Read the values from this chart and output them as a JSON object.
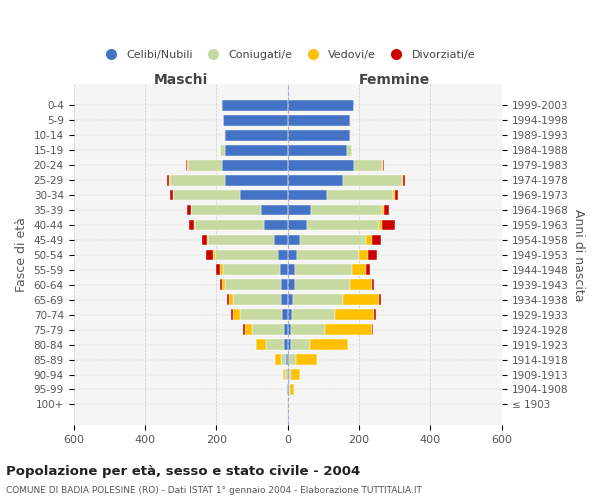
{
  "age_groups": [
    "100+",
    "95-99",
    "90-94",
    "85-89",
    "80-84",
    "75-79",
    "70-74",
    "65-69",
    "60-64",
    "55-59",
    "50-54",
    "45-49",
    "40-44",
    "35-39",
    "30-34",
    "25-29",
    "20-24",
    "15-19",
    "10-14",
    "5-9",
    "0-4"
  ],
  "birth_years": [
    "≤ 1903",
    "1904-1908",
    "1909-1913",
    "1914-1918",
    "1919-1923",
    "1924-1928",
    "1929-1933",
    "1934-1938",
    "1939-1943",
    "1944-1948",
    "1949-1953",
    "1954-1958",
    "1959-1963",
    "1964-1968",
    "1969-1973",
    "1974-1978",
    "1979-1983",
    "1984-1988",
    "1989-1993",
    "1994-1998",
    "1999-2003"
  ],
  "males": {
    "single": [
      2,
      2,
      3,
      5,
      10,
      10,
      15,
      18,
      20,
      22,
      28,
      38,
      65,
      75,
      135,
      175,
      185,
      175,
      175,
      180,
      185
    ],
    "married": [
      0,
      2,
      5,
      15,
      50,
      90,
      120,
      135,
      155,
      160,
      175,
      185,
      195,
      195,
      185,
      155,
      95,
      15,
      3,
      2,
      2
    ],
    "widowed": [
      0,
      2,
      5,
      15,
      30,
      20,
      18,
      12,
      10,
      8,
      5,
      3,
      2,
      2,
      2,
      2,
      2,
      0,
      0,
      0,
      0
    ],
    "divorced": [
      0,
      0,
      0,
      0,
      0,
      5,
      5,
      5,
      5,
      10,
      20,
      15,
      15,
      10,
      8,
      5,
      2,
      0,
      0,
      0,
      0
    ]
  },
  "females": {
    "single": [
      2,
      5,
      5,
      5,
      8,
      10,
      12,
      15,
      20,
      20,
      25,
      35,
      55,
      65,
      110,
      155,
      185,
      165,
      175,
      175,
      185
    ],
    "married": [
      0,
      2,
      5,
      18,
      55,
      95,
      120,
      140,
      155,
      160,
      175,
      185,
      200,
      200,
      185,
      165,
      80,
      15,
      3,
      2,
      2
    ],
    "widowed": [
      2,
      10,
      25,
      60,
      105,
      130,
      110,
      100,
      60,
      40,
      25,
      15,
      10,
      5,
      5,
      3,
      2,
      0,
      0,
      0,
      0
    ],
    "divorced": [
      0,
      0,
      0,
      0,
      2,
      5,
      5,
      5,
      8,
      10,
      25,
      25,
      35,
      15,
      10,
      5,
      2,
      0,
      0,
      0,
      0
    ]
  },
  "colors": {
    "single": "#4472c4",
    "married": "#c5d9a0",
    "widowed": "#ffc000",
    "divorced": "#cc0000"
  },
  "legend_labels": [
    "Celibi/Nubili",
    "Coniugati/e",
    "Vedovi/e",
    "Divorziati/e"
  ],
  "title": "Popolazione per età, sesso e stato civile - 2004",
  "subtitle": "COMUNE DI BADIA POLESINE (RO) - Dati ISTAT 1° gennaio 2004 - Elaborazione TUTTITALIA.IT",
  "ylabel_left": "Fasce di età",
  "ylabel_right": "Anni di nascita",
  "xlabel_left": "Maschi",
  "xlabel_right": "Femmine",
  "xlim": 600,
  "bg_color": "#f5f5f5"
}
